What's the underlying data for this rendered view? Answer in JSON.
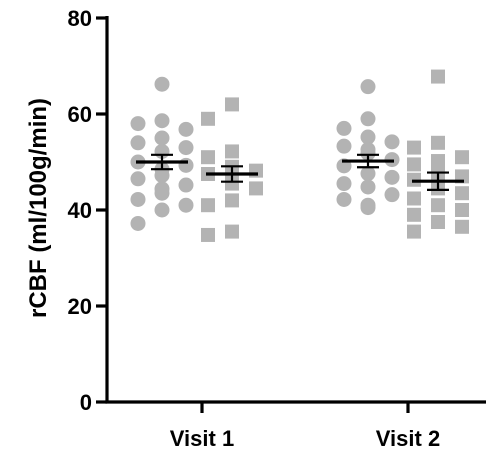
{
  "chart_data": {
    "type": "scatter",
    "ylabel": "rCBF (ml/100g/min)",
    "xlabel": "",
    "ylim": [
      0,
      80
    ],
    "yticks": [
      0,
      20,
      40,
      60,
      80
    ],
    "categories": [
      "Visit 1",
      "Visit 2"
    ],
    "grid": false,
    "legend": "none",
    "series": [
      {
        "marker": "circle",
        "color": "#b3b3b3",
        "points": [
          {
            "category": "Visit 1",
            "values": [
              66.2,
              58.6,
              58.0,
              56.8,
              55.0,
              54.0,
              53.0,
              52.2,
              50.0,
              49.3,
              48.5,
              47.2,
              46.5,
              45.2,
              44.4,
              43.5,
              42.2,
              41.0,
              40.0,
              37.2
            ]
          },
          {
            "category": "Visit 2",
            "values": [
              65.7,
              59.0,
              57.0,
              55.2,
              54.2,
              53.3,
              52.6,
              51.8,
              50.5,
              49.2,
              47.6,
              46.8,
              45.5,
              44.8,
              43.2,
              42.2,
              41.0,
              40.5
            ]
          }
        ],
        "mean": [
          50.0,
          50.2
        ],
        "sem": [
          1.5,
          1.3
        ]
      },
      {
        "marker": "square",
        "color": "#b3b3b3",
        "points": [
          {
            "category": "Visit 1",
            "values": [
              62.0,
              59.0,
              52.2,
              51.0,
              49.0,
              48.2,
              47.5,
              47.0,
              46.0,
              45.5,
              44.5,
              42.0,
              41.0,
              35.5,
              34.8
            ]
          },
          {
            "category": "Visit 2",
            "values": [
              67.8,
              54.0,
              53.0,
              51.0,
              50.2,
              49.5,
              48.3,
              47.0,
              46.3,
              45.5,
              44.5,
              43.5,
              42.4,
              41.0,
              40.0,
              39.0,
              37.5,
              36.5,
              35.5
            ]
          }
        ],
        "mean": [
          47.5,
          46.0
        ],
        "sem": [
          1.6,
          1.8
        ]
      }
    ]
  }
}
